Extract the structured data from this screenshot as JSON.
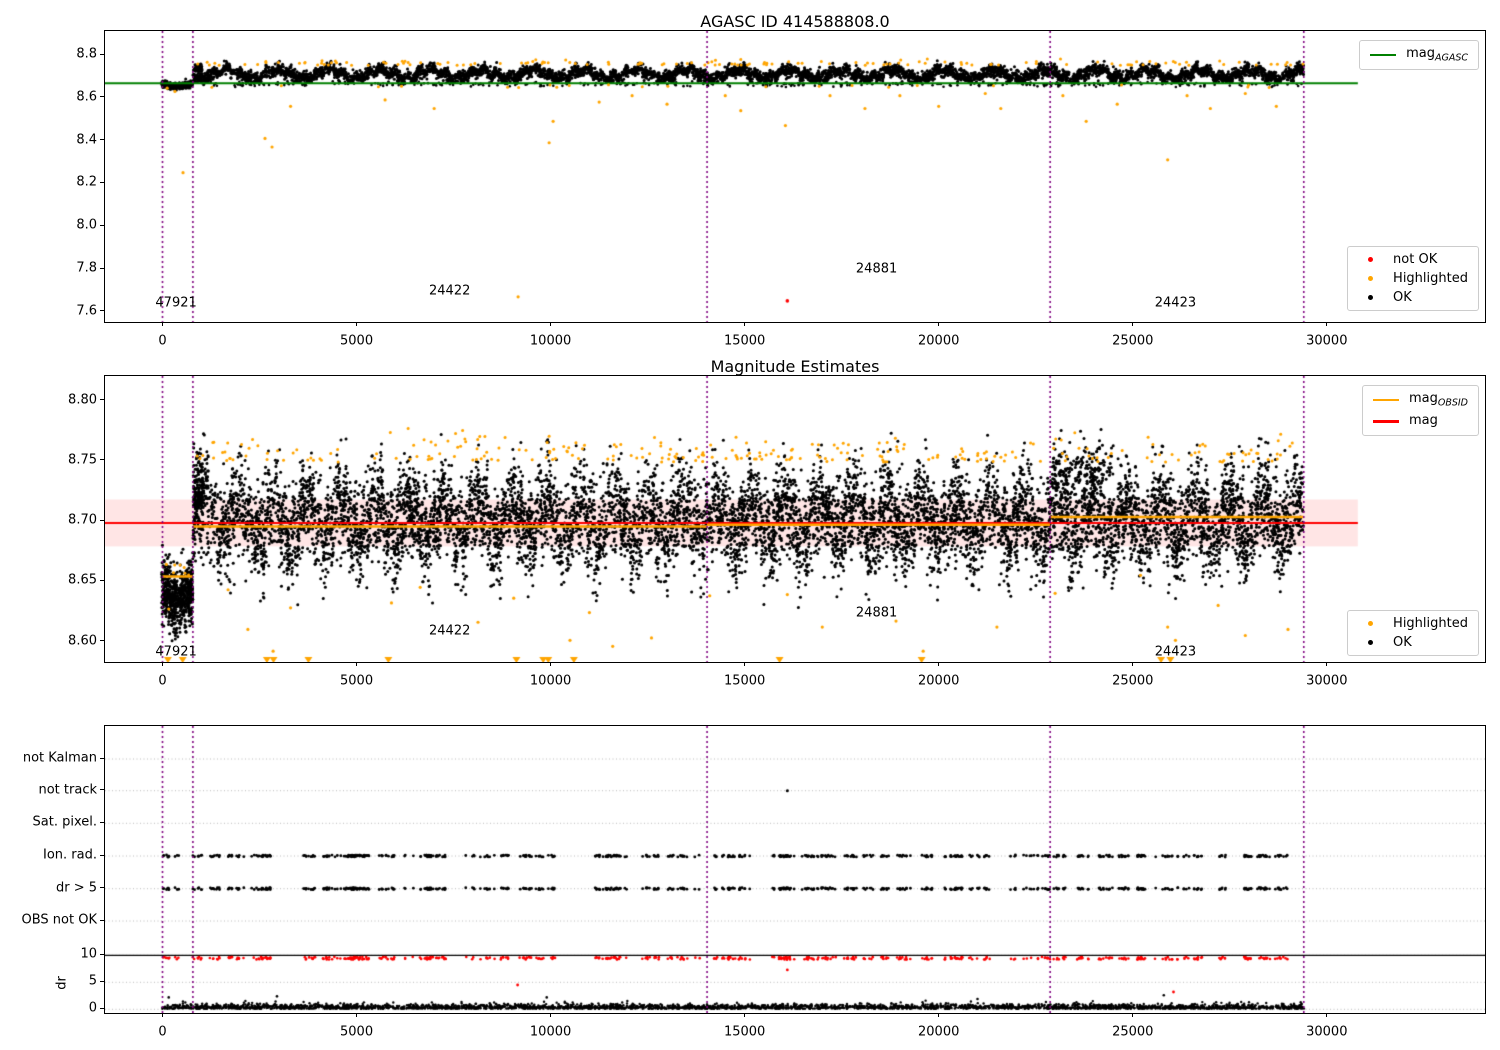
{
  "colors": {
    "ok": "#000000",
    "highlighted": "#FFA500",
    "not_ok": "#FF0000",
    "mag_agasc_line": "#008000",
    "mag_line": "#FF0000",
    "mag_obsid_line": "#FFA500",
    "mag_err_band": "rgba(255,0,0,0.10)",
    "obsid_vline": "#800080",
    "grid": "#b8b8b8"
  },
  "chart_data": [
    {
      "type": "scatter",
      "title": "AGASC ID 414588808.0",
      "xticks": [
        0,
        5000,
        10000,
        15000,
        20000,
        25000,
        30000
      ],
      "yticks": [
        8.8,
        8.6,
        8.4,
        8.2,
        8.0,
        7.8,
        7.6
      ],
      "ylim": [
        7.552,
        8.912
      ],
      "xlim": [
        -1482,
        34078
      ],
      "hline": {
        "name": "mag_AGASC",
        "value": 8.668,
        "x_end": 30800
      },
      "vlines": [
        0,
        783,
        14032,
        22872,
        29407
      ],
      "annotations": [
        {
          "text": "47921",
          "x": 350,
          "y": 7.64
        },
        {
          "text": "24422",
          "x": 7400,
          "y": 7.698
        },
        {
          "text": "24881",
          "x": 18400,
          "y": 7.802
        },
        {
          "text": "24423",
          "x": 26100,
          "y": 7.64
        }
      ],
      "legend_line": {
        "pre": "mag",
        "sub": "AGASC"
      },
      "legend_scatter": [
        {
          "label": "not OK",
          "color_key": "not_ok"
        },
        {
          "label": "Highlighted",
          "color_key": "highlighted"
        },
        {
          "label": "OK",
          "color_key": "ok"
        }
      ],
      "series": {
        "ok": {
          "label": "OK",
          "segments": [
            {
              "x": [
                -20,
                780
              ],
              "center": 8.66,
              "dip": 0.013,
              "spread": 0.0075,
              "n": 380
            },
            {
              "x": [
                780,
                29400
              ],
              "center": 8.711,
              "spread": 0.014,
              "n": 6000
            }
          ],
          "fringe": {
            "x": [
              780,
              29400
            ],
            "center": 8.664,
            "spread": 0.006,
            "n": 350
          },
          "start_cluster": {
            "x": [
              800,
              1020
            ],
            "base": 8.725,
            "n": 80
          }
        },
        "highlighted": {
          "label": "Highlighted",
          "band_top": {
            "x": [
              780,
              29400
            ],
            "base": 8.752,
            "n": 140
          },
          "low_fringe": {
            "x": [
              0,
              29400
            ],
            "base": 8.648,
            "n": 22
          },
          "outliers": [
            [
              120,
              8.645
            ],
            [
              320,
              8.63
            ],
            [
              529,
              8.25
            ],
            [
              2641,
              8.41
            ],
            [
              2822,
              8.37
            ],
            [
              3300,
              8.56
            ],
            [
              5735,
              8.59
            ],
            [
              7000,
              8.55
            ],
            [
              9163,
              7.67
            ],
            [
              9962,
              8.39
            ],
            [
              10065,
              8.49
            ],
            [
              11251,
              8.58
            ],
            [
              12100,
              8.61
            ],
            [
              13000,
              8.57
            ],
            [
              14500,
              8.61
            ],
            [
              14900,
              8.54
            ],
            [
              16050,
              8.47
            ],
            [
              17200,
              8.61
            ],
            [
              18100,
              8.55
            ],
            [
              19000,
              8.61
            ],
            [
              20000,
              8.56
            ],
            [
              21200,
              8.62
            ],
            [
              21600,
              8.55
            ],
            [
              23200,
              8.61
            ],
            [
              23800,
              8.49
            ],
            [
              24600,
              8.57
            ],
            [
              25900,
              8.31
            ],
            [
              26400,
              8.61
            ],
            [
              27000,
              8.55
            ],
            [
              27900,
              8.62
            ],
            [
              28700,
              8.56
            ]
          ]
        },
        "not_ok": {
          "label": "not OK",
          "points": [
            [
              16100,
              7.651
            ]
          ]
        }
      }
    },
    {
      "type": "scatter",
      "title": "Magnitude Estimates",
      "xticks": [
        0,
        5000,
        10000,
        15000,
        20000,
        25000,
        30000
      ],
      "yticks": [
        8.8,
        8.75,
        8.7,
        8.65,
        8.6
      ],
      "ylim": [
        8.583,
        8.8205
      ],
      "xlim": [
        -1482,
        34078
      ],
      "mag_line": {
        "name": "mag",
        "value": 8.6985,
        "band": [
          8.679,
          8.718
        ],
        "x_end": 30800
      },
      "obsid_segments": [
        {
          "x": [
            0,
            780
          ],
          "value": 8.654
        },
        {
          "x": [
            780,
            14030
          ],
          "value": 8.6955
        },
        {
          "x": [
            14030,
            22870
          ],
          "value": 8.697
        },
        {
          "x": [
            22870,
            29400
          ],
          "value": 8.7035
        }
      ],
      "vlines": [
        0,
        783,
        14032,
        22872,
        29407
      ],
      "annotations": [
        {
          "text": "47921",
          "x": 350,
          "y": 8.5915
        },
        {
          "text": "24422",
          "x": 7400,
          "y": 8.609
        },
        {
          "text": "24881",
          "x": 18400,
          "y": 8.6235
        },
        {
          "text": "24423",
          "x": 26100,
          "y": 8.591
        }
      ],
      "legend_lines": [
        {
          "pre": "mag",
          "sub": "OBSID",
          "color_key": "mag_obsid_line"
        },
        {
          "pre": "mag",
          "sub": "",
          "color_key": "mag_line"
        }
      ],
      "legend_scatter": [
        {
          "label": "Highlighted",
          "color_key": "highlighted"
        },
        {
          "label": "OK",
          "color_key": "ok"
        }
      ],
      "series": {
        "ok": {
          "segments": [
            {
              "x": [
                -20,
                780
              ],
              "center": 8.642,
              "dip": 0.009,
              "spread": 0.0125,
              "n": 700
            },
            {
              "x": [
                780,
                29400
              ],
              "center": 8.701,
              "spread": 0.019,
              "n": 9500
            }
          ],
          "start_cluster": {
            "x": [
              790,
              1050
            ],
            "base": 8.71,
            "n": 160
          },
          "tall_cluster": {
            "x": [
              22900,
              24500
            ],
            "base": 8.73,
            "n": 140
          }
        },
        "highlighted": {
          "band_top": {
            "x": [
              780,
              29400
            ],
            "base": 8.749,
            "n": 260
          },
          "dip_dots": {
            "x": [
              0,
              700
            ],
            "base": 8.655,
            "n": 6
          },
          "outliers": [
            [
              100,
              8.664
            ],
            [
              160,
              8.627
            ],
            [
              1690,
              8.643
            ],
            [
              2200,
              8.61
            ],
            [
              2850,
              8.592
            ],
            [
              3300,
              8.628
            ],
            [
              5900,
              8.632
            ],
            [
              6640,
              8.645
            ],
            [
              8130,
              8.616
            ],
            [
              9050,
              8.636
            ],
            [
              10500,
              8.601
            ],
            [
              11000,
              8.624
            ],
            [
              11600,
              8.596
            ],
            [
              12600,
              8.603
            ],
            [
              14100,
              8.638
            ],
            [
              16100,
              8.639
            ],
            [
              17000,
              8.612
            ],
            [
              18900,
              8.617
            ],
            [
              19600,
              8.592
            ],
            [
              21500,
              8.612
            ],
            [
              23000,
              8.64
            ],
            [
              25200,
              8.655
            ],
            [
              25900,
              8.612
            ],
            [
              26100,
              8.601
            ],
            [
              27200,
              8.63
            ],
            [
              27900,
              8.605
            ],
            [
              29000,
              8.61
            ]
          ],
          "clipped_triangles_x": [
            140,
            520,
            2690,
            2860,
            3760,
            5820,
            9120,
            9810,
            9940,
            10600,
            15900,
            19560,
            25730,
            25970
          ]
        }
      }
    },
    {
      "type": "scatter",
      "xticks": [
        0,
        5000,
        10000,
        15000,
        20000,
        25000,
        30000
      ],
      "flag_rows": [
        "not Kalman",
        "not track",
        "Sat. pixel.",
        "Ion. rad.",
        "dr > 5",
        "OBS not OK"
      ],
      "dr_ticks": [
        10,
        5,
        0
      ],
      "ylabel": "dr",
      "dr_limit_line": 10,
      "vlines": [
        0,
        783,
        14032,
        22872,
        29407
      ],
      "series": {
        "flag_clusters": {
          "n_clusters": 130,
          "x_range": [
            0,
            29400
          ],
          "spread": 260,
          "max_pts": 8,
          "rows": [
            "Ion. rad.",
            "dr > 5"
          ],
          "red_row_dr": 9.45
        },
        "dr_band": {
          "n": 3200,
          "x_range": [
            -20,
            29410
          ],
          "base": 0.1,
          "sigma": 0.42,
          "max": 1.75
        },
        "not_track_points_x": [
          16100
        ],
        "red_extra": [
          [
            9150,
            4.5
          ],
          [
            16100,
            7.3
          ],
          [
            26050,
            3.2
          ]
        ],
        "black_extra": [
          [
            160,
            2.2
          ],
          [
            2950,
            2.4
          ],
          [
            9900,
            2.2
          ],
          [
            21000,
            1.9
          ],
          [
            25800,
            2.6
          ]
        ]
      }
    }
  ]
}
